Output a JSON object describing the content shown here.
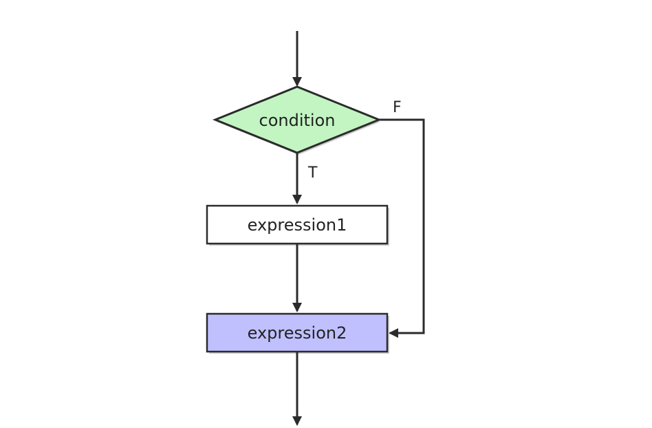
{
  "nodes": {
    "condition": {
      "label": "condition",
      "fill": "#c2f5c2"
    },
    "expression1": {
      "label": "expression1",
      "fill": "#ffffff"
    },
    "expression2": {
      "label": "expression2",
      "fill": "#c0c0ff"
    }
  },
  "edges": {
    "true_label": "T",
    "false_label": "F"
  },
  "colors": {
    "stroke": "#2b2b2b",
    "shadow": "#9a9a9a"
  }
}
